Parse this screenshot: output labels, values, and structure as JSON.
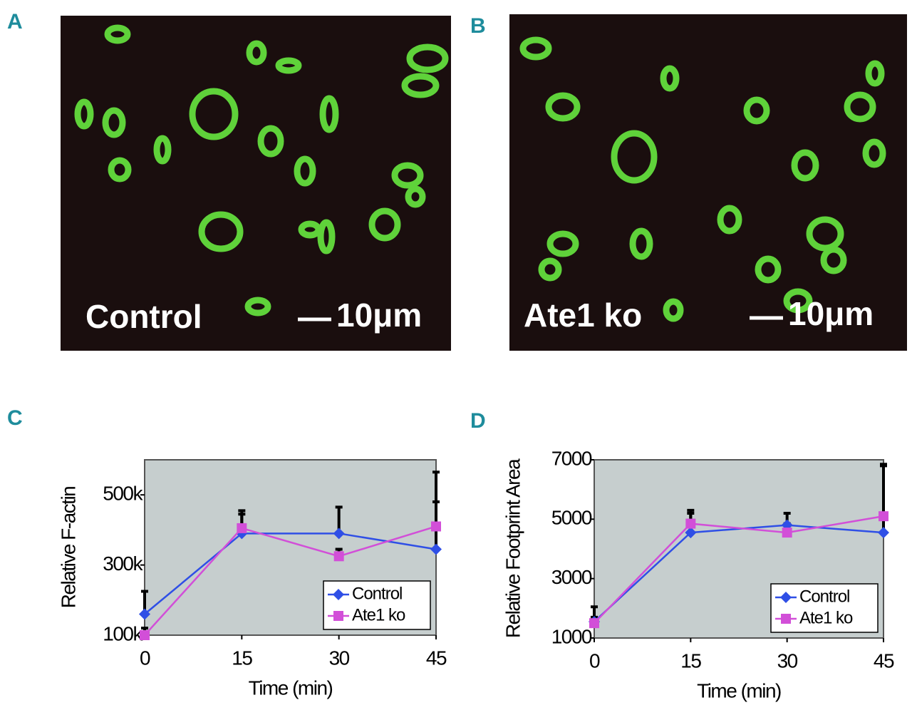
{
  "panels": [
    {
      "letter": "A",
      "label": "Control",
      "scale": "10μm"
    },
    {
      "letter": "B",
      "label": "Ate1 ko",
      "scale": "10μm"
    }
  ],
  "chart_data": [
    {
      "type": "line",
      "letter": "C",
      "xlabel": "Time (min)",
      "ylabel": "Relative F-actin",
      "x": [
        0,
        15,
        30,
        45
      ],
      "xlim": [
        0,
        45
      ],
      "xticks": [
        0,
        15,
        30,
        45
      ],
      "ylim": [
        100000,
        600000
      ],
      "yticks": [
        {
          "value": 100000,
          "label": "100k"
        },
        {
          "value": 300000,
          "label": "300k"
        },
        {
          "value": 500000,
          "label": "500k"
        }
      ],
      "legend": "lower right",
      "background": "#c6cece",
      "series": [
        {
          "name": "Control",
          "color": "#2f4fe6",
          "marker": "diamond",
          "values": [
            160000,
            390000,
            390000,
            345000
          ],
          "errors": [
            65000,
            65000,
            75000,
            135000
          ]
        },
        {
          "name": "Ate1 ko",
          "color": "#d24fd8",
          "marker": "square",
          "values": [
            100000,
            405000,
            325000,
            410000
          ],
          "errors": [
            20000,
            40000,
            20000,
            155000
          ]
        }
      ]
    },
    {
      "type": "line",
      "letter": "D",
      "xlabel": "Time (min)",
      "ylabel": "Relative Footprint Area",
      "x": [
        0,
        15,
        30,
        45
      ],
      "xlim": [
        0,
        45
      ],
      "xticks": [
        0,
        15,
        30,
        45
      ],
      "ylim": [
        1000,
        7000
      ],
      "yticks": [
        1000,
        3000,
        5000,
        7000
      ],
      "legend": "lower right",
      "background": "#c6cece",
      "series": [
        {
          "name": "Control",
          "color": "#2f4fe6",
          "marker": "diamond",
          "values": [
            1550,
            4550,
            4800,
            4550
          ],
          "errors": [
            500,
            650,
            400,
            2300
          ]
        },
        {
          "name": "Ate1 ko",
          "color": "#d24fd8",
          "marker": "square",
          "values": [
            1500,
            4850,
            4550,
            5100
          ],
          "errors": [
            200,
            450,
            300,
            1700
          ]
        }
      ]
    }
  ]
}
